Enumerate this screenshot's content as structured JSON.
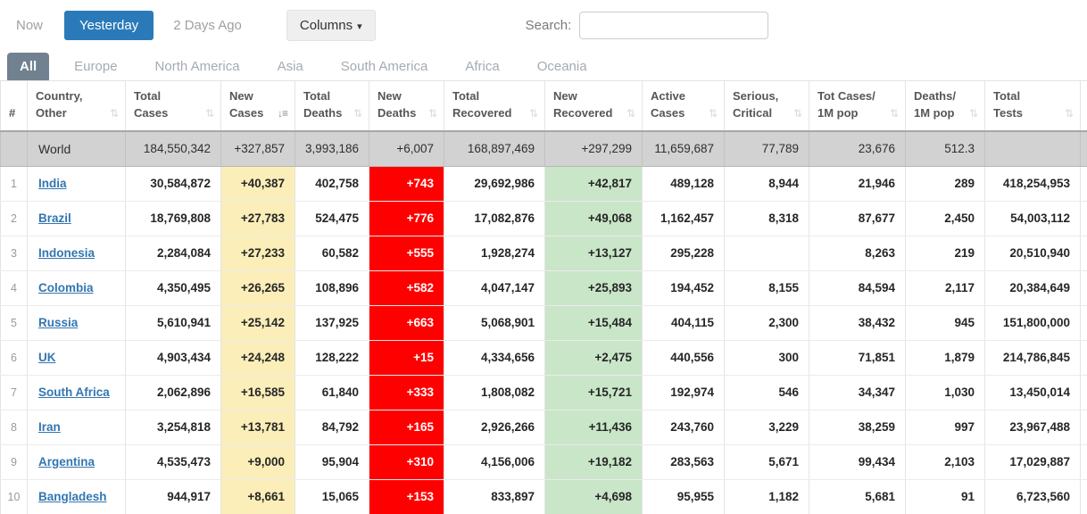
{
  "toolbar": {
    "now_label": "Now",
    "yesterday_label": "Yesterday",
    "two_days_ago_label": "2 Days Ago",
    "columns_label": "Columns",
    "search_label": "Search:",
    "search_value": "",
    "active_button_color": "#2a7ab9"
  },
  "tabs": {
    "active": "All",
    "items": [
      "All",
      "Europe",
      "North America",
      "Asia",
      "South America",
      "Africa",
      "Oceania"
    ],
    "active_tab_color": "#71818f"
  },
  "icons": {
    "sort_inactive": "⇅",
    "sort_active_desc": "↓≡",
    "dropdown_caret": "▾"
  },
  "table": {
    "highlight_colors": {
      "new_cases": "#fbeeb8",
      "new_deaths": "#ff0000",
      "new_recovered": "#c9e6c9"
    },
    "columns": [
      {
        "key": "rank",
        "line1": "#",
        "line2": "",
        "sort": "none"
      },
      {
        "key": "country",
        "line1": "Country,",
        "line2": "Other",
        "sort": "inactive"
      },
      {
        "key": "total_cases",
        "line1": "Total",
        "line2": "Cases",
        "sort": "inactive"
      },
      {
        "key": "new_cases",
        "line1": "New",
        "line2": "Cases",
        "sort": "active"
      },
      {
        "key": "total_deaths",
        "line1": "Total",
        "line2": "Deaths",
        "sort": "inactive"
      },
      {
        "key": "new_deaths",
        "line1": "New",
        "line2": "Deaths",
        "sort": "inactive"
      },
      {
        "key": "total_recovered",
        "line1": "Total",
        "line2": "Recovered",
        "sort": "inactive"
      },
      {
        "key": "new_recovered",
        "line1": "New",
        "line2": "Recovered",
        "sort": "inactive"
      },
      {
        "key": "active_cases",
        "line1": "Active",
        "line2": "Cases",
        "sort": "inactive"
      },
      {
        "key": "serious_critical",
        "line1": "Serious,",
        "line2": "Critical",
        "sort": "inactive"
      },
      {
        "key": "tot_cases_1m",
        "line1": "Tot Cases/",
        "line2": "1M pop",
        "sort": "inactive"
      },
      {
        "key": "deaths_1m",
        "line1": "Deaths/",
        "line2": "1M pop",
        "sort": "inactive"
      },
      {
        "key": "total_tests",
        "line1": "Total",
        "line2": "Tests",
        "sort": "inactive"
      }
    ],
    "world_row": {
      "rank": "",
      "country": "World",
      "link": false,
      "cells": [
        "184,550,342",
        "+327,857",
        "3,993,186",
        "+6,007",
        "168,897,469",
        "+297,299",
        "11,659,687",
        "77,789",
        "23,676",
        "512.3",
        ""
      ]
    },
    "rows": [
      {
        "rank": "1",
        "country": "India",
        "link": true,
        "cells": [
          "30,584,872",
          "+40,387",
          "402,758",
          "+743",
          "29,692,986",
          "+42,817",
          "489,128",
          "8,944",
          "21,946",
          "289",
          "418,254,953"
        ]
      },
      {
        "rank": "2",
        "country": "Brazil",
        "link": true,
        "cells": [
          "18,769,808",
          "+27,783",
          "524,475",
          "+776",
          "17,082,876",
          "+49,068",
          "1,162,457",
          "8,318",
          "87,677",
          "2,450",
          "54,003,112"
        ]
      },
      {
        "rank": "3",
        "country": "Indonesia",
        "link": true,
        "cells": [
          "2,284,084",
          "+27,233",
          "60,582",
          "+555",
          "1,928,274",
          "+13,127",
          "295,228",
          "",
          "8,263",
          "219",
          "20,510,940"
        ]
      },
      {
        "rank": "4",
        "country": "Colombia",
        "link": true,
        "cells": [
          "4,350,495",
          "+26,265",
          "108,896",
          "+582",
          "4,047,147",
          "+25,893",
          "194,452",
          "8,155",
          "84,594",
          "2,117",
          "20,384,649"
        ]
      },
      {
        "rank": "5",
        "country": "Russia",
        "link": true,
        "cells": [
          "5,610,941",
          "+25,142",
          "137,925",
          "+663",
          "5,068,901",
          "+15,484",
          "404,115",
          "2,300",
          "38,432",
          "945",
          "151,800,000"
        ]
      },
      {
        "rank": "6",
        "country": "UK",
        "link": true,
        "cells": [
          "4,903,434",
          "+24,248",
          "128,222",
          "+15",
          "4,334,656",
          "+2,475",
          "440,556",
          "300",
          "71,851",
          "1,879",
          "214,786,845"
        ]
      },
      {
        "rank": "7",
        "country": "South Africa",
        "link": true,
        "cells": [
          "2,062,896",
          "+16,585",
          "61,840",
          "+333",
          "1,808,082",
          "+15,721",
          "192,974",
          "546",
          "34,347",
          "1,030",
          "13,450,014"
        ]
      },
      {
        "rank": "8",
        "country": "Iran",
        "link": true,
        "cells": [
          "3,254,818",
          "+13,781",
          "84,792",
          "+165",
          "2,926,266",
          "+11,436",
          "243,760",
          "3,229",
          "38,259",
          "997",
          "23,967,488"
        ]
      },
      {
        "rank": "9",
        "country": "Argentina",
        "link": true,
        "cells": [
          "4,535,473",
          "+9,000",
          "95,904",
          "+310",
          "4,156,006",
          "+19,182",
          "283,563",
          "5,671",
          "99,434",
          "2,103",
          "17,029,887"
        ]
      },
      {
        "rank": "10",
        "country": "Bangladesh",
        "link": true,
        "cells": [
          "944,917",
          "+8,661",
          "15,065",
          "+153",
          "833,897",
          "+4,698",
          "95,955",
          "1,182",
          "5,681",
          "91",
          "6,723,560"
        ]
      }
    ]
  }
}
